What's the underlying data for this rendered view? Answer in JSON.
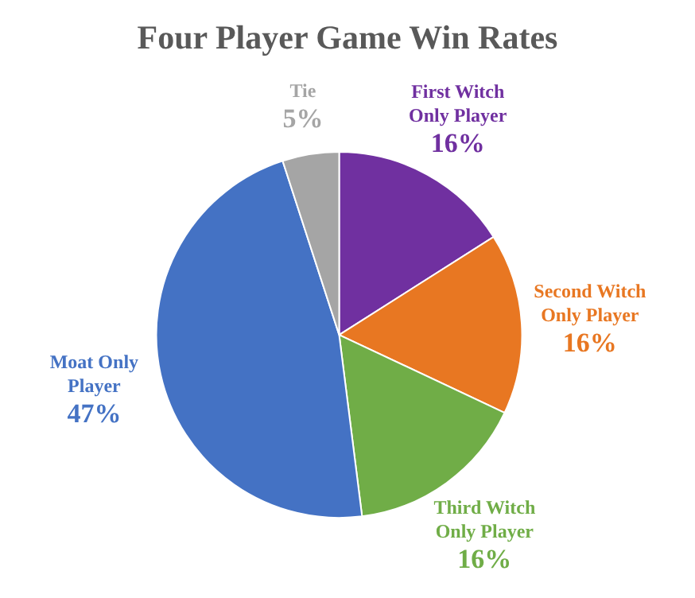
{
  "chart_data": {
    "type": "pie",
    "title": "Four Player Game Win Rates",
    "categories": [
      "First Witch Only Player",
      "Second Witch Only Player",
      "Third Witch Only Player",
      "Moat Only Player",
      "Tie"
    ],
    "values": [
      16,
      16,
      16,
      47,
      5
    ],
    "value_labels": [
      "16%",
      "16%",
      "16%",
      "47%",
      "5%"
    ],
    "colors": [
      "#7030a0",
      "#e87722",
      "#70ad47",
      "#4472c4",
      "#a5a5a5"
    ],
    "legend": false
  }
}
